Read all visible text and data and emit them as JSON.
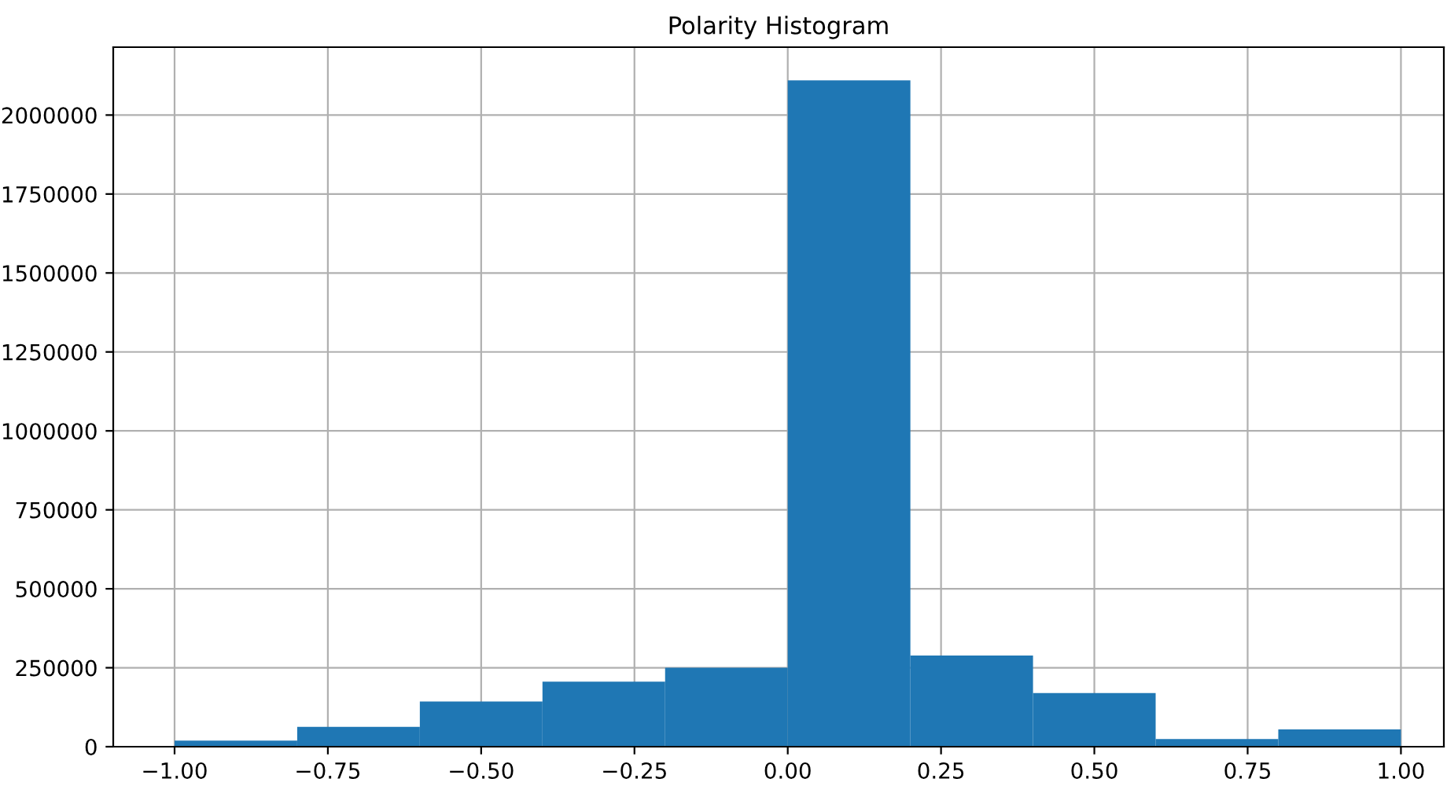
{
  "chart_data": {
    "type": "histogram",
    "title": "Polarity Histogram",
    "bins": [
      -1.0,
      -0.8,
      -0.6,
      -0.4,
      -0.2,
      0.0,
      0.2,
      0.4,
      0.6,
      0.8,
      1.0
    ],
    "values": [
      19000,
      63000,
      143000,
      206000,
      250000,
      2110000,
      289000,
      170000,
      24000,
      55000
    ],
    "color": "#1f77b4",
    "xlim": [
      -1.1,
      1.07
    ],
    "ylim": [
      0,
      2215000
    ],
    "xticks": [
      {
        "value": -1.0,
        "label": "−1.00"
      },
      {
        "value": -0.75,
        "label": "−0.75"
      },
      {
        "value": -0.5,
        "label": "−0.50"
      },
      {
        "value": -0.25,
        "label": "−0.25"
      },
      {
        "value": 0.0,
        "label": "0.00"
      },
      {
        "value": 0.25,
        "label": "0.25"
      },
      {
        "value": 0.5,
        "label": "0.50"
      },
      {
        "value": 0.75,
        "label": "0.75"
      },
      {
        "value": 1.0,
        "label": "1.00"
      }
    ],
    "yticks": [
      0,
      250000,
      500000,
      750000,
      1000000,
      1250000,
      1500000,
      1750000,
      2000000
    ],
    "grid": true
  }
}
